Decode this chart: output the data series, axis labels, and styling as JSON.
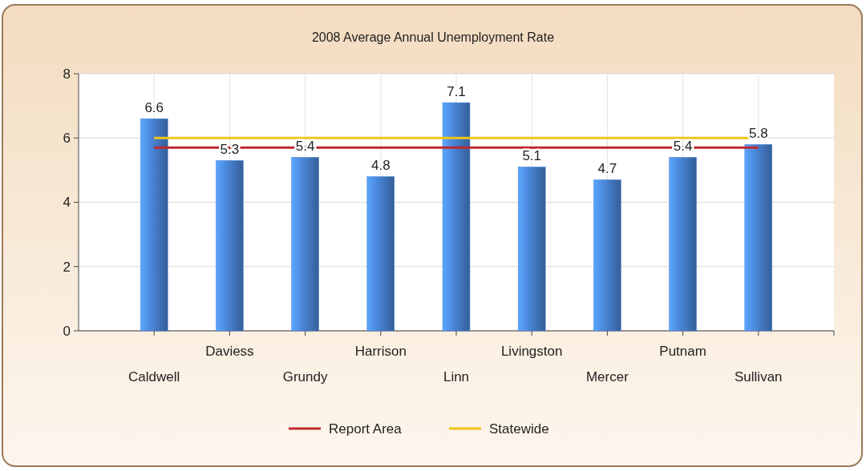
{
  "chart_data": {
    "type": "bar",
    "title": "2008 Average Annual Unemployment Rate",
    "categories": [
      "Caldwell",
      "Daviess",
      "Grundy",
      "Harrison",
      "Linn",
      "Livingston",
      "Mercer",
      "Putnam",
      "Sullivan"
    ],
    "series": [
      {
        "color": "#4a86d8",
        "values": [
          6.6,
          5.3,
          5.4,
          4.8,
          7.1,
          5.1,
          4.7,
          5.4,
          5.8
        ],
        "value_labels": [
          "6.6",
          "5.3",
          "5.4",
          "4.8",
          "7.1",
          "5.1",
          "4.7",
          "5.4",
          "5.8"
        ]
      },
      {
        "type": "line",
        "name": "Report Area",
        "color": "#c0282d",
        "values": [
          5.7,
          5.7,
          5.7,
          5.7,
          5.7,
          5.7,
          5.7,
          5.7,
          5.7
        ]
      },
      {
        "type": "line",
        "name": "Statewide",
        "color": "#f0c419",
        "values": [
          6.0,
          6.0,
          6.0,
          6.0,
          6.0,
          6.0,
          6.0,
          6.0,
          6.0
        ]
      }
    ],
    "ylim": [
      0,
      8
    ],
    "yticks": [
      0,
      2,
      4,
      6,
      8
    ],
    "grid": true,
    "legend": "bottom"
  }
}
